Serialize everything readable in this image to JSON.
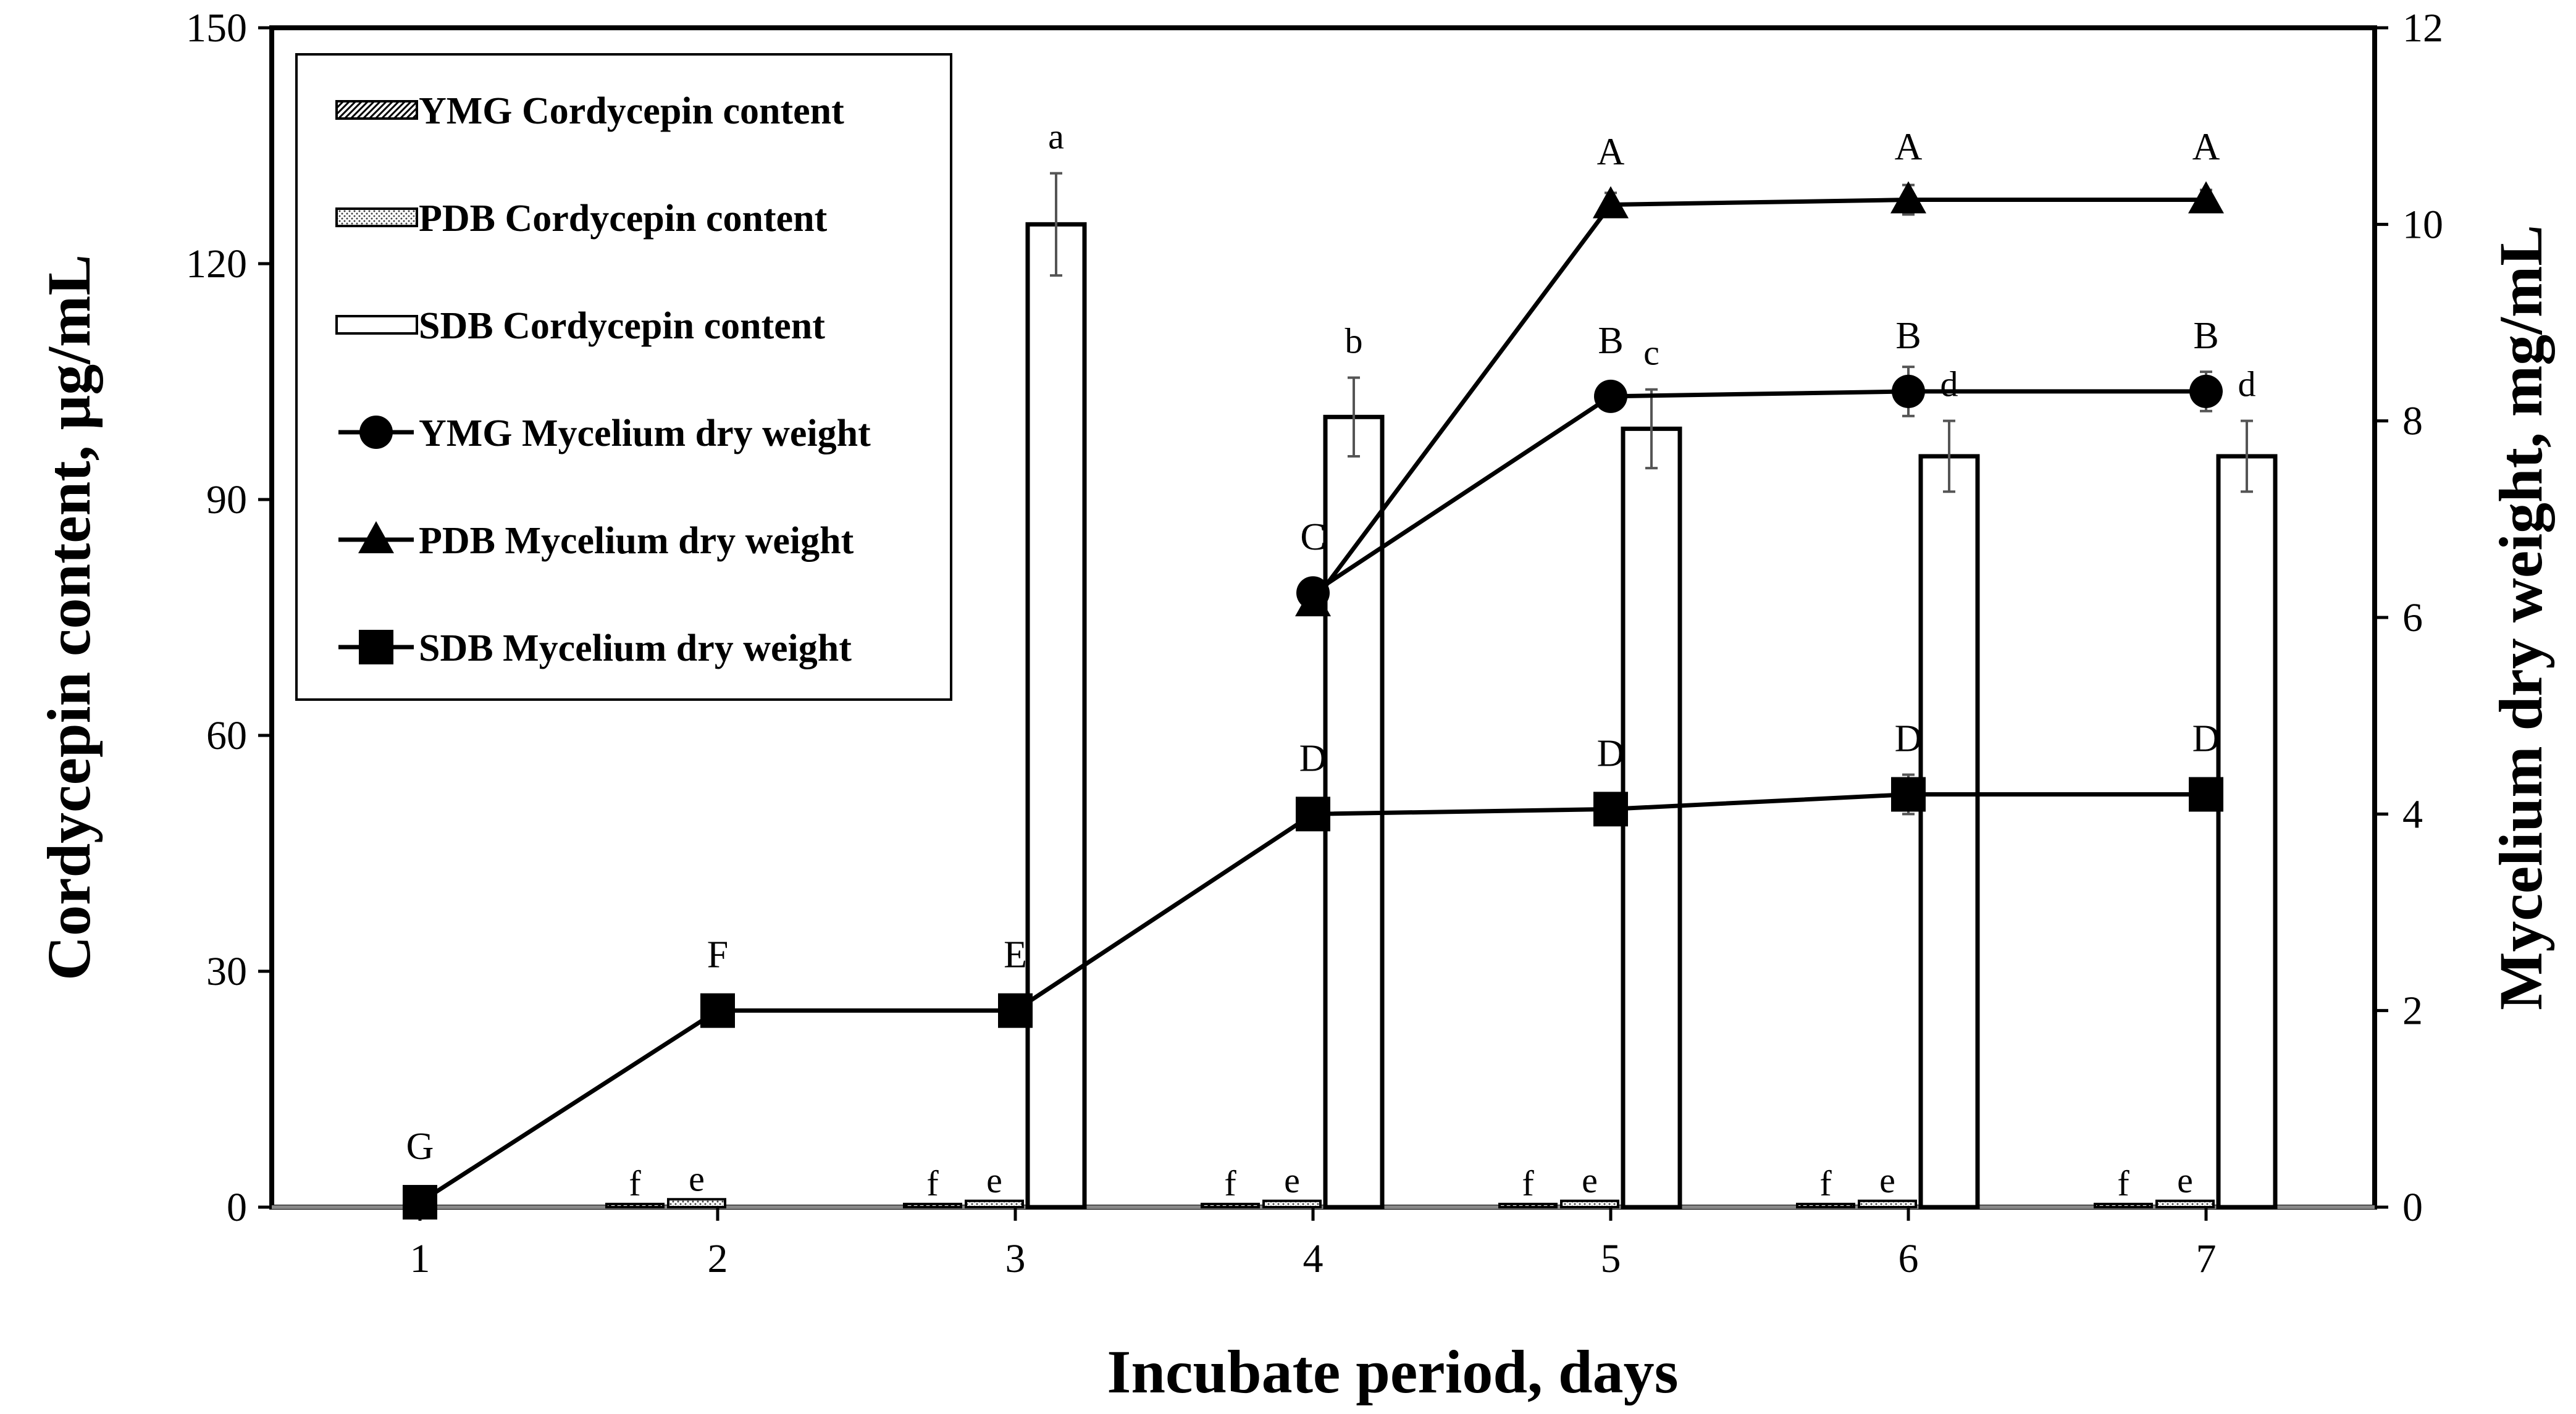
{
  "chart_data": {
    "type": "bar",
    "xlabel": "Incubate period, days",
    "ylabel_left": "Cordycepin content, μg/mL",
    "ylabel_right": "Mycelium dry weight, mg/mL",
    "categories": [
      "1",
      "2",
      "3",
      "4",
      "5",
      "6",
      "7"
    ],
    "ylim_left": [
      0,
      150
    ],
    "yticks_left": [
      0,
      30,
      60,
      90,
      120,
      150
    ],
    "ylim_right": [
      0,
      12
    ],
    "yticks_right": [
      0,
      2,
      4,
      6,
      8,
      10,
      12
    ],
    "grid": false,
    "legend_position": "top-left",
    "bar_series": [
      {
        "name": "YMG Cordycepin content",
        "fill": "hatch",
        "values": [
          0,
          0.4,
          0.4,
          0.4,
          0.4,
          0.4,
          0.4
        ],
        "errors": [
          0,
          0,
          0,
          0,
          0,
          0,
          0
        ],
        "labels": [
          "",
          "f",
          "f",
          "f",
          "f",
          "f",
          "f"
        ]
      },
      {
        "name": "PDB Cordycepin content",
        "fill": "dots",
        "values": [
          0,
          1.0,
          0.8,
          0.8,
          0.8,
          0.8,
          0.8
        ],
        "errors": [
          0,
          0,
          0,
          0,
          0,
          0,
          0
        ],
        "labels": [
          "",
          "e",
          "e",
          "e",
          "e",
          "e",
          "e"
        ]
      },
      {
        "name": "SDB Cordycepin content",
        "fill": "white",
        "values": [
          0,
          0,
          125,
          100.5,
          99,
          95.5,
          95.5
        ],
        "errors": [
          0,
          0,
          6.5,
          5,
          5,
          4.5,
          4.5
        ],
        "labels": [
          "",
          "",
          "a",
          "b",
          "c",
          "d",
          "d"
        ]
      }
    ],
    "line_series": [
      {
        "name": "YMG Mycelium dry weight",
        "marker": "circle",
        "values": [
          null,
          null,
          null,
          6.25,
          8.25,
          8.3,
          8.3
        ],
        "errors": [
          0,
          0,
          0,
          0.1,
          0.12,
          0.25,
          0.2
        ],
        "labels": [
          "",
          "",
          "",
          "C",
          "B",
          "B",
          "B"
        ]
      },
      {
        "name": "PDB Mycelium dry weight",
        "marker": "triangle",
        "values": [
          null,
          null,
          null,
          6.15,
          10.2,
          10.25,
          10.25
        ],
        "errors": [
          0,
          0,
          0,
          0,
          0.12,
          0.15,
          0.1
        ],
        "labels": [
          "",
          "",
          "",
          "",
          "A",
          "A",
          "A"
        ]
      },
      {
        "name": "SDB Mycelium dry weight",
        "marker": "square",
        "values": [
          0.05,
          2.0,
          2.0,
          4.0,
          4.05,
          4.2,
          4.2
        ],
        "errors": [
          0,
          0,
          0,
          0.1,
          0.1,
          0.2,
          0.15
        ],
        "labels": [
          "G",
          "F",
          "E",
          "D",
          "D",
          "D",
          "D"
        ]
      }
    ]
  },
  "colors": {
    "line": "#000000",
    "background": "#ffffff",
    "error_bar": "#555555"
  }
}
